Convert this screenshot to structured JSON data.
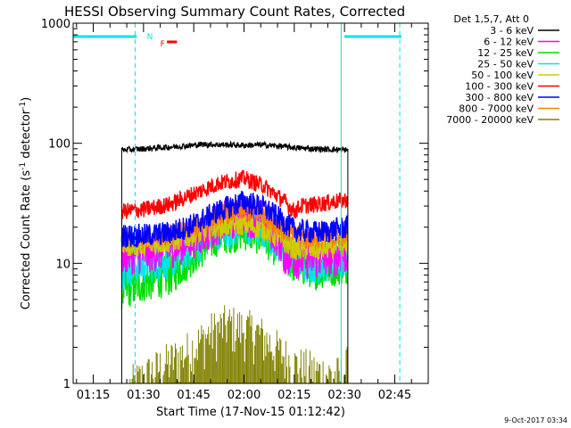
{
  "chart_data": {
    "type": "line",
    "title": "HESSI Observing Summary Count Rates, Corrected",
    "xlabel": "Start Time (17-Nov-15 01:12:42)",
    "ylabel": "Corrected Count Rate (s⁻¹ detector⁻¹)",
    "ylabel_parts": {
      "main": "Corrected Count Rate (s",
      "sup1": "-1",
      "mid": " detector",
      "sup2": "-1",
      "end": ")"
    },
    "y_scale": "log",
    "ylim": [
      1,
      1000
    ],
    "y_ticks": [
      "1",
      "10",
      "100",
      "1000"
    ],
    "xlim": [
      "01:09",
      "02:55"
    ],
    "x_ticks": [
      "01:15",
      "01:30",
      "01:45",
      "02:00",
      "02:15",
      "02:30",
      "02:45"
    ],
    "grid": false,
    "legend_placement": "right",
    "legend_header": "Det 1,5,7, Att 0",
    "timestamp": "9-Oct-2017 03:34",
    "flag_letters": {
      "n": "N",
      "f": "F"
    },
    "flags": {
      "saa": {
        "color": "#00e5e5",
        "segments": [
          [
            "01:09",
            "01:28"
          ],
          [
            "02:30",
            "02:47"
          ]
        ]
      },
      "flare": {
        "color": "#ff0000",
        "segments": [
          [
            "01:37",
            "01:40"
          ]
        ]
      },
      "n_marker_time": "01:31",
      "f_marker_time": "01:35"
    },
    "markers": {
      "solid_cyan": [
        "01:09",
        "02:29"
      ],
      "dashed_cyan": [
        "01:27.5",
        "02:46.5"
      ]
    },
    "series": [
      {
        "name": "3 - 6 keV",
        "color": "#000000",
        "x": [
          "01:23.5",
          "01:30",
          "01:40",
          "01:48",
          "01:55",
          "02:00",
          "02:05",
          "02:10",
          "02:15",
          "02:20",
          "02:25",
          "02:31"
        ],
        "values": [
          88,
          90,
          94,
          98,
          97,
          96,
          97,
          95,
          92,
          90,
          89,
          88
        ]
      },
      {
        "name": "6 - 12 keV",
        "color": "#ff00ff",
        "x": [
          "01:23.5",
          "01:30",
          "01:40",
          "01:48",
          "01:55",
          "02:00",
          "02:05",
          "02:10",
          "02:12",
          "02:15",
          "02:22",
          "02:31"
        ],
        "values": [
          12,
          12,
          14,
          18,
          23,
          25,
          23,
          17,
          12,
          11,
          11,
          12
        ]
      },
      {
        "name": "12 - 25 keV",
        "color": "#00dd00",
        "x": [
          "01:23.5",
          "01:30",
          "01:38",
          "01:45",
          "01:52",
          "02:00",
          "02:06",
          "02:12",
          "02:15",
          "02:22",
          "02:31"
        ],
        "values": [
          6,
          7,
          8,
          12,
          17,
          19,
          17,
          12,
          10,
          9,
          10
        ]
      },
      {
        "name": "25 - 50 keV",
        "color": "#00e5e5",
        "x": [
          "01:23.5",
          "01:30",
          "01:38",
          "01:45",
          "01:52",
          "02:00",
          "02:06",
          "02:12",
          "02:15",
          "02:22",
          "02:31"
        ],
        "values": [
          9,
          10,
          11,
          14,
          19,
          21,
          19,
          14,
          11,
          10,
          11
        ]
      },
      {
        "name": "50 - 100 keV",
        "color": "#cccc00",
        "x": [
          "01:23.5",
          "01:30",
          "01:38",
          "01:45",
          "01:52",
          "02:00",
          "02:06",
          "02:12",
          "02:15",
          "02:22",
          "02:31"
        ],
        "values": [
          14,
          14,
          15,
          17,
          20,
          21,
          19,
          15,
          13,
          13,
          14
        ]
      },
      {
        "name": "100 - 300 keV",
        "color": "#ff0000",
        "x": [
          "01:23.5",
          "01:30",
          "01:38",
          "01:45",
          "01:52",
          "02:00",
          "02:06",
          "02:12",
          "02:15",
          "02:17",
          "02:22",
          "02:31"
        ],
        "values": [
          27,
          28,
          31,
          38,
          46,
          51,
          44,
          33,
          27,
          30,
          31,
          34
        ]
      },
      {
        "name": "300 - 800 keV",
        "color": "#0000ff",
        "x": [
          "01:23.5",
          "01:30",
          "01:38",
          "01:45",
          "01:52",
          "02:00",
          "02:06",
          "02:12",
          "02:15",
          "02:22",
          "02:31"
        ],
        "values": [
          17,
          17,
          18,
          21,
          27,
          33,
          29,
          22,
          19,
          18,
          20
        ]
      },
      {
        "name": "800 - 7000 keV",
        "color": "#ff8000",
        "x": [
          "01:23.5",
          "01:30",
          "01:38",
          "01:45",
          "01:52",
          "02:00",
          "02:06",
          "02:12",
          "02:15",
          "02:22",
          "02:31"
        ],
        "values": [
          16,
          16,
          17,
          20,
          25,
          28,
          25,
          19,
          17,
          16,
          17
        ]
      },
      {
        "name": "7000 - 20000 keV",
        "color": "#808000",
        "x": [
          "01:26",
          "01:36",
          "01:44",
          "01:50",
          "01:55",
          "02:00",
          "02:04",
          "02:10",
          "02:15",
          "02:22",
          "02:29",
          "02:31"
        ],
        "values": [
          1,
          1.5,
          2,
          2.8,
          3.3,
          3,
          2.8,
          2,
          1.5,
          1.3,
          1.2,
          1.5
        ]
      }
    ]
  }
}
